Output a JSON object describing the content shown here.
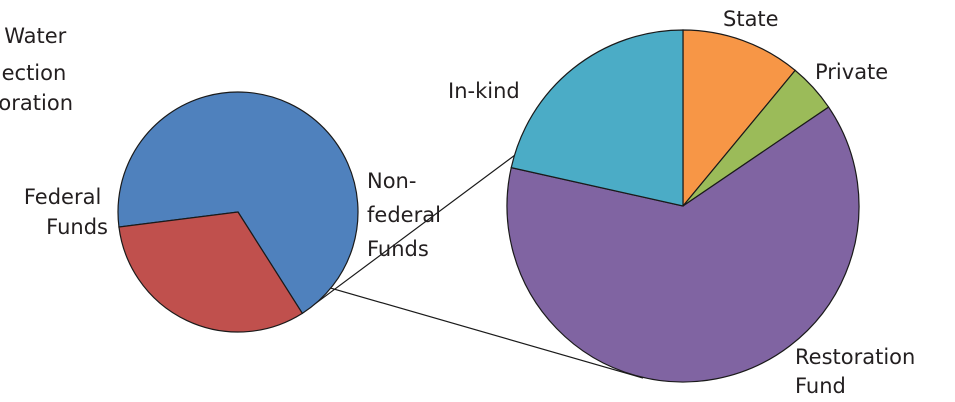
{
  "chart_data": [
    {
      "type": "pie",
      "title": "",
      "label_lines": [
        "Water",
        "ection",
        "oration"
      ],
      "slices": [
        {
          "name": "Federal Funds",
          "label_lines": [
            "Federal",
            "Funds"
          ],
          "value": 68,
          "color": "#4f81bd"
        },
        {
          "name": "Non-federal Funds",
          "label_lines": [
            "Non-",
            "federal",
            "Funds"
          ],
          "value": 32,
          "color": "#c0504d"
        }
      ]
    },
    {
      "type": "pie",
      "title": "",
      "breakdown_of": "Non-federal Funds",
      "slices": [
        {
          "name": "State",
          "label_lines": [
            "State"
          ],
          "value": 11,
          "color": "#f79646"
        },
        {
          "name": "Private",
          "label_lines": [
            "Private"
          ],
          "value": 4.5,
          "color": "#9bbb59"
        },
        {
          "name": "Restoration Fund",
          "label_lines": [
            "Restoration",
            "Fund"
          ],
          "value": 63,
          "color": "#8064a2"
        },
        {
          "name": "In-kind",
          "label_lines": [
            "In-kind"
          ],
          "value": 21.5,
          "color": "#4bacc6"
        }
      ]
    }
  ]
}
